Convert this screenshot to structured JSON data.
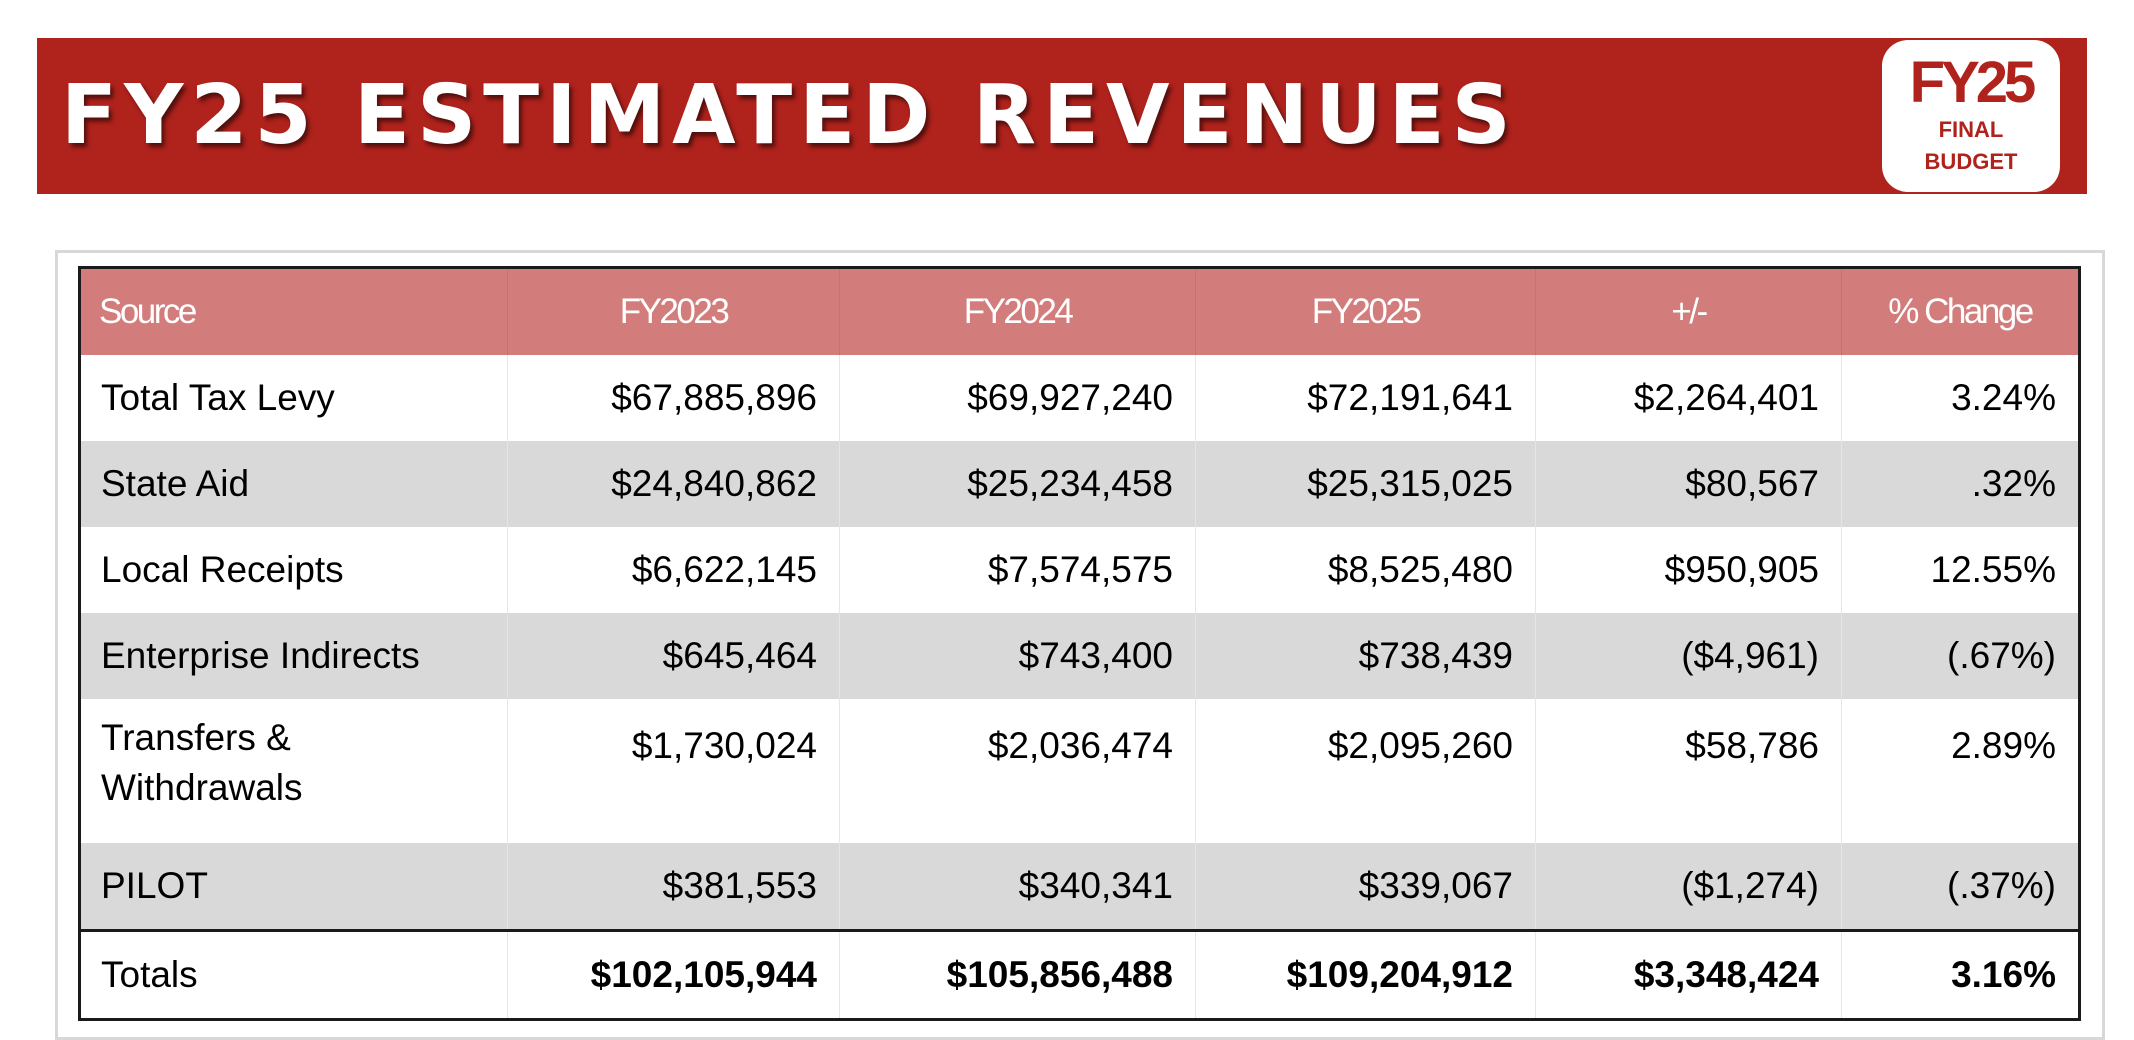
{
  "banner": {
    "title": "FY25 ESTIMATED REVENUES",
    "badge": {
      "year": "FY25",
      "line1": "FINAL",
      "line2": "BUDGET"
    },
    "color": "#b0221c"
  },
  "table": {
    "header_color": "#d27d7c",
    "stripe_color": "#d9d9d9",
    "columns": [
      "Source",
      "FY2023",
      "FY2024",
      "FY2025",
      "+/-",
      "% Change"
    ],
    "rows": [
      [
        "Total Tax Levy",
        "$67,885,896",
        "$69,927,240",
        "$72,191,641",
        "$2,264,401",
        "3.24%"
      ],
      [
        "State Aid",
        "$24,840,862",
        "$25,234,458",
        "$25,315,025",
        "$80,567",
        ".32%"
      ],
      [
        "Local Receipts",
        "$6,622,145",
        "$7,574,575",
        "$8,525,480",
        "$950,905",
        "12.55%"
      ],
      [
        "Enterprise Indirects",
        "$645,464",
        "$743,400",
        "$738,439",
        "($4,961)",
        "(.67%)"
      ],
      [
        "Transfers & Withdrawals",
        "$1,730,024",
        "$2,036,474",
        "$2,095,260",
        "$58,786",
        "2.89%"
      ],
      [
        "PILOT",
        "$381,553",
        "$340,341",
        "$339,067",
        "($1,274)",
        "(.37%)"
      ]
    ],
    "totals": [
      "Totals",
      "$102,105,944",
      "$105,856,488",
      "$109,204,912",
      "$3,348,424",
      "3.16%"
    ]
  }
}
